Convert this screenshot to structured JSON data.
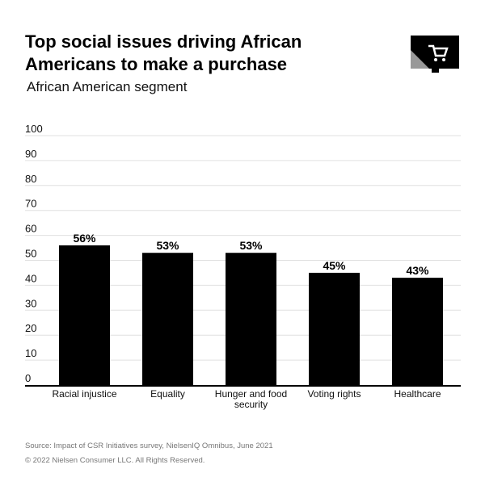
{
  "chart_data": {
    "type": "bar",
    "title": "Top social issues driving African Americans to make a purchase",
    "subtitle": "African American segment",
    "categories": [
      "Racial injustice",
      "Equality",
      "Hunger and food security",
      "Voting rights",
      "Healthcare"
    ],
    "values": [
      56,
      53,
      53,
      45,
      43
    ],
    "data_labels": [
      "56%",
      "53%",
      "53%",
      "45%",
      "43%"
    ],
    "xlabel": "",
    "ylabel": "",
    "ylim": [
      0,
      100
    ],
    "yticks": [
      0,
      10,
      20,
      30,
      40,
      50,
      60,
      70,
      80,
      90,
      100
    ],
    "grid": true,
    "bar_color": "#000000",
    "grid_color": "#e0e0e0"
  },
  "logo": {
    "icon": "shopping-cart-icon",
    "color": "#000000",
    "accent": "#999999"
  },
  "footer": {
    "source": "Source: Impact of CSR Initiatives survey, NielsenIQ Omnibus, June 2021",
    "copyright": "© 2022 Nielsen Consumer LLC. All Rights Reserved."
  }
}
